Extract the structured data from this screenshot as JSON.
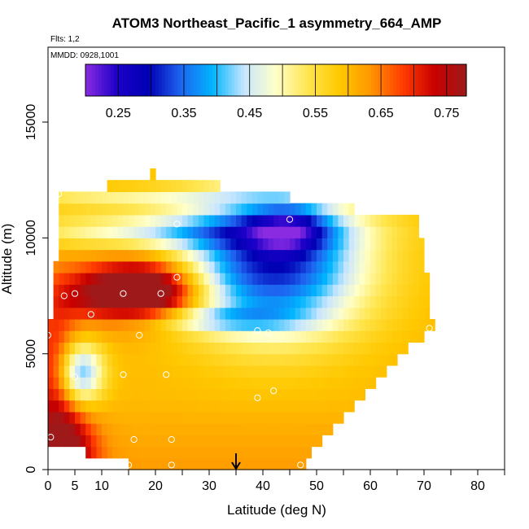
{
  "chart_data": {
    "type": "heatmap",
    "title": "ATOM3 Northeast_Pacific_1 asymmetry_664_AMP",
    "flights_label": "Flts: 1,2",
    "date_label": "MMDD: 0928,1001",
    "xlabel": "Latitude (deg N)",
    "ylabel": "Altitude (m)",
    "xlim": [
      0,
      85
    ],
    "ylim": [
      0,
      18000
    ],
    "x_ticks": [
      0,
      5,
      10,
      20,
      30,
      40,
      50,
      60,
      70,
      80
    ],
    "y_ticks": [
      0,
      5000,
      10000,
      15000
    ],
    "colorbar": {
      "range": [
        0.2,
        0.78
      ],
      "ticks": [
        0.25,
        0.35,
        0.45,
        0.55,
        0.65,
        0.75
      ],
      "tick_labels": [
        "0.25",
        "0.35",
        "0.45",
        "0.55",
        "0.65",
        "0.75"
      ],
      "colors": [
        "#8a2be2",
        "#1c00c8",
        "#0000b4",
        "#1e64f0",
        "#00b4ff",
        "#c8e6ff",
        "#ffffc8",
        "#ffe650",
        "#ffc800",
        "#ff9600",
        "#ff3c00",
        "#c80000",
        "#9e1a1a"
      ]
    },
    "field": [
      {
        "ymin": 0,
        "ymax": 500,
        "xmin": 15,
        "xmax": 48
      },
      {
        "ymin": 500,
        "ymax": 1000,
        "xmin": 7,
        "xmax": 49
      },
      {
        "ymin": 1000,
        "ymax": 1500,
        "xmin": 0,
        "xmax": 51
      },
      {
        "ymin": 1500,
        "ymax": 2000,
        "xmin": 0,
        "xmax": 53
      },
      {
        "ymin": 2000,
        "ymax": 2500,
        "xmin": 0,
        "xmax": 55
      },
      {
        "ymin": 2500,
        "ymax": 3000,
        "xmin": 0,
        "xmax": 57
      },
      {
        "ymin": 3000,
        "ymax": 3500,
        "xmin": 0,
        "xmax": 59
      },
      {
        "ymin": 3500,
        "ymax": 4000,
        "xmin": 0,
        "xmax": 61
      },
      {
        "ymin": 4000,
        "ymax": 4500,
        "xmin": 0,
        "xmax": 63
      },
      {
        "ymin": 4500,
        "ymax": 5000,
        "xmin": 0,
        "xmax": 65
      },
      {
        "ymin": 5000,
        "ymax": 5500,
        "xmin": 0,
        "xmax": 67
      },
      {
        "ymin": 5500,
        "ymax": 6000,
        "xmin": 0,
        "xmax": 70
      },
      {
        "ymin": 6000,
        "ymax": 6500,
        "xmin": 0,
        "xmax": 72
      },
      {
        "ymin": 6500,
        "ymax": 7000,
        "xmin": 1,
        "xmax": 71
      },
      {
        "ymin": 7000,
        "ymax": 7500,
        "xmin": 1,
        "xmax": 71
      },
      {
        "ymin": 7500,
        "ymax": 8000,
        "xmin": 1,
        "xmax": 71
      },
      {
        "ymin": 8000,
        "ymax": 8500,
        "xmin": 1,
        "xmax": 71
      },
      {
        "ymin": 8500,
        "ymax": 9000,
        "xmin": 1,
        "xmax": 70
      },
      {
        "ymin": 9000,
        "ymax": 9500,
        "xmin": 2,
        "xmax": 70
      },
      {
        "ymin": 9500,
        "ymax": 10000,
        "xmin": 2,
        "xmax": 70
      },
      {
        "ymin": 10000,
        "ymax": 10500,
        "xmin": 2,
        "xmax": 69
      },
      {
        "ymin": 10500,
        "ymax": 11000,
        "xmin": 2,
        "xmax": 69
      },
      {
        "ymin": 11000,
        "ymax": 11500,
        "xmin": 2,
        "xmax": 57
      },
      {
        "ymin": 11500,
        "ymax": 12000,
        "xmin": 2,
        "xmax": 45
      },
      {
        "ymin": 12000,
        "ymax": 12500,
        "xmin": 11,
        "xmax": 32
      },
      {
        "ymin": 12500,
        "ymax": 13000,
        "xmin": 19,
        "xmax": 20
      }
    ],
    "features": [
      {
        "type": "high",
        "x": 18,
        "y": 7700,
        "sx": 7,
        "sy": 900,
        "amp": 0.3
      },
      {
        "type": "high",
        "x": 7,
        "y": 7500,
        "sx": 5,
        "sy": 900,
        "amp": 0.08
      },
      {
        "type": "high",
        "x": 3,
        "y": 800,
        "sx": 4,
        "sy": 1200,
        "amp": 0.18
      },
      {
        "type": "high",
        "x": 1,
        "y": 4000,
        "sx": 3,
        "sy": 2500,
        "amp": 0.12
      },
      {
        "type": "low",
        "x": 6,
        "y": 4200,
        "sx": 3,
        "sy": 900,
        "amp": 0.2
      },
      {
        "type": "low",
        "x": 42,
        "y": 9000,
        "sx": 12,
        "sy": 2200,
        "amp": 0.3
      },
      {
        "type": "low",
        "x": 45,
        "y": 10400,
        "sx": 5,
        "sy": 700,
        "amp": 0.12
      },
      {
        "type": "low",
        "x": 22,
        "y": 10300,
        "sx": 20,
        "sy": 500,
        "amp": 0.12
      },
      {
        "type": "low",
        "x": 15,
        "y": 11700,
        "sx": 18,
        "sy": 300,
        "amp": 0.08
      },
      {
        "type": "low",
        "x": 30,
        "y": 6500,
        "sx": 12,
        "sy": 400,
        "amp": 0.1
      }
    ],
    "background_value": 0.6,
    "markers": [
      {
        "lat": 15,
        "alt": 200
      },
      {
        "lat": 23,
        "alt": 200
      },
      {
        "lat": 47,
        "alt": 200
      },
      {
        "lat": 0.5,
        "alt": 1400
      },
      {
        "lat": 16,
        "alt": 1300
      },
      {
        "lat": 23,
        "alt": 1300
      },
      {
        "lat": 42,
        "alt": 3400
      },
      {
        "lat": 39,
        "alt": 3100
      },
      {
        "lat": 5,
        "alt": 4000
      },
      {
        "lat": 14,
        "alt": 4100
      },
      {
        "lat": 22,
        "alt": 4100
      },
      {
        "lat": 0,
        "alt": 5800
      },
      {
        "lat": 17,
        "alt": 5800
      },
      {
        "lat": 39,
        "alt": 6000
      },
      {
        "lat": 41,
        "alt": 5900
      },
      {
        "lat": 71,
        "alt": 6100
      },
      {
        "lat": 8,
        "alt": 6700
      },
      {
        "lat": 3,
        "alt": 7500
      },
      {
        "lat": 5,
        "alt": 7600
      },
      {
        "lat": 14,
        "alt": 7600
      },
      {
        "lat": 21,
        "alt": 7600
      },
      {
        "lat": 24,
        "alt": 8300
      },
      {
        "lat": 24,
        "alt": 10600
      },
      {
        "lat": 45,
        "alt": 10800
      },
      {
        "lat": 2,
        "alt": 11900
      }
    ],
    "arrow": {
      "lat": 35,
      "alt_top": 700,
      "alt_bottom": 0
    }
  }
}
